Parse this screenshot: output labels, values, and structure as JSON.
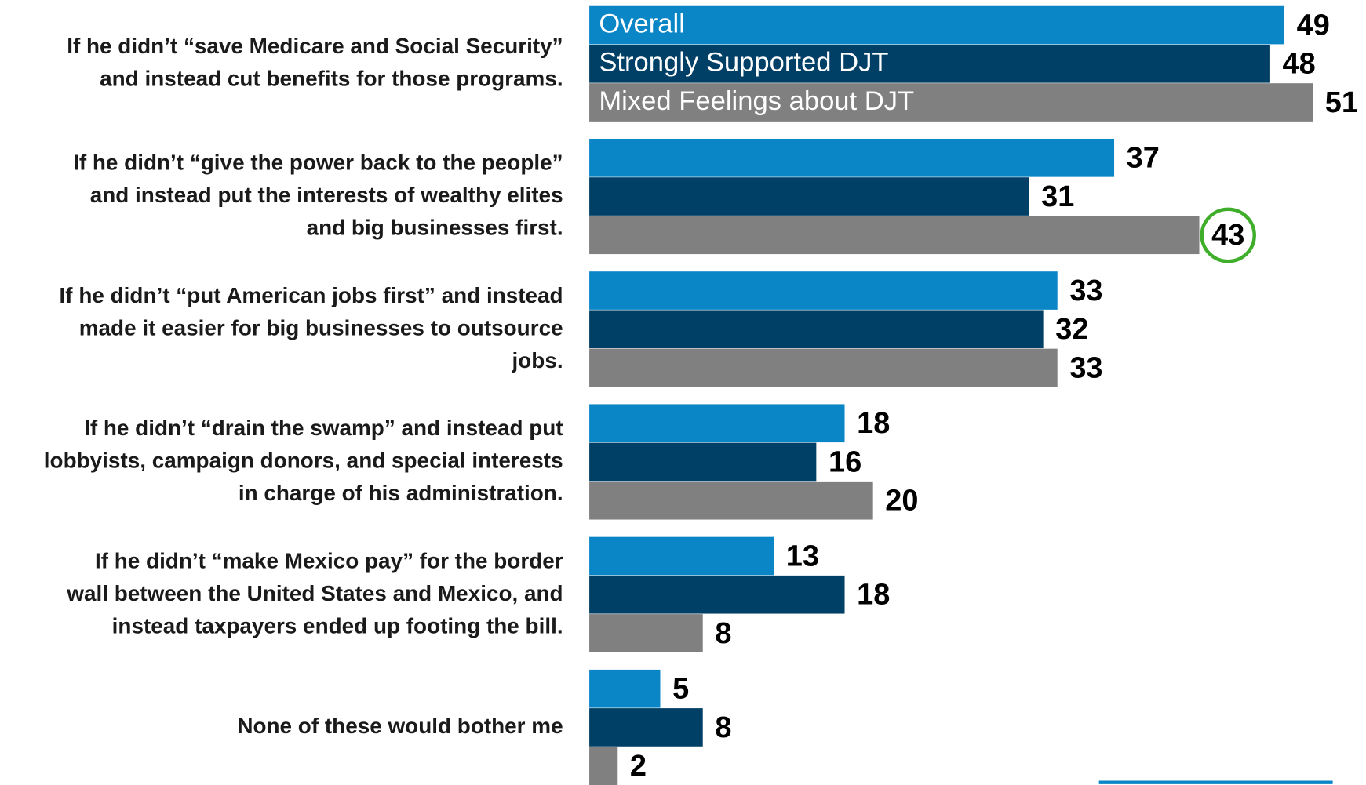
{
  "chart_data": {
    "type": "bar",
    "orientation": "horizontal",
    "categories": [
      [
        "If he didn’t “save Medicare and Social Security”",
        "and instead cut benefits for those programs."
      ],
      [
        "If he didn’t “give the power back to the people”",
        "and instead put the interests of wealthy elites",
        "and big businesses first."
      ],
      [
        "If he didn’t “put American jobs first” and instead",
        "made it easier for big businesses to outsource",
        "jobs."
      ],
      [
        "If he didn’t “drain the swamp” and instead put",
        "lobbyists, campaign donors, and special interests",
        "in charge of his administration."
      ],
      [
        "If he didn’t “make Mexico pay” for the border",
        "wall between the United States and Mexico, and",
        "instead taxpayers ended up footing the bill."
      ],
      [
        "None of these would bother me"
      ]
    ],
    "series": [
      {
        "name": "Overall",
        "color": "#0a86c6",
        "values": [
          49,
          37,
          33,
          18,
          13,
          5
        ]
      },
      {
        "name": "Strongly Supported DJT",
        "color": "#003f66",
        "values": [
          48,
          31,
          32,
          16,
          18,
          8
        ]
      },
      {
        "name": "Mixed Feelings about DJT",
        "color": "#808080",
        "values": [
          51,
          43,
          33,
          20,
          8,
          2
        ]
      }
    ]
  }
}
